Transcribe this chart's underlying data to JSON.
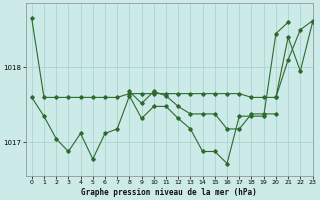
{
  "bg_color": "#cceae7",
  "grid_color": "#aad4d0",
  "line_color": "#2d6a2d",
  "xlabel": "Graphe pression niveau de la mer (hPa)",
  "xlim": [
    -0.5,
    23
  ],
  "ylim": [
    1016.55,
    1018.85
  ],
  "yticks": [
    1017,
    1018
  ],
  "xticks": [
    0,
    1,
    2,
    3,
    4,
    5,
    6,
    7,
    8,
    9,
    10,
    11,
    12,
    13,
    14,
    15,
    16,
    17,
    18,
    19,
    20,
    21,
    22,
    23
  ],
  "series": [
    [
      1018.65,
      1017.6,
      1017.6,
      1017.6,
      1017.6,
      1017.6,
      1017.6,
      1017.6,
      1017.65,
      1017.65,
      1017.65,
      1017.65,
      1017.65,
      1017.65,
      1017.65,
      1017.65,
      1017.65,
      1017.65,
      1017.6,
      1017.6,
      1017.6,
      1018.4,
      1017.95,
      1018.6
    ],
    [
      1017.6,
      1017.35,
      1017.05,
      1016.88,
      1017.12,
      1016.78,
      1017.12,
      1017.18,
      1017.62,
      1017.32,
      1017.48,
      1017.48,
      1017.32,
      1017.18,
      1016.88,
      1016.88,
      1016.72,
      1017.35,
      1017.35,
      1017.35,
      1018.45,
      1018.6,
      null,
      null
    ],
    [
      null,
      null,
      null,
      null,
      null,
      null,
      null,
      null,
      1017.68,
      1017.52,
      1017.68,
      1017.62,
      1017.48,
      1017.38,
      1017.38,
      1017.38,
      1017.18,
      1017.18,
      1017.38,
      1017.38,
      1017.38,
      null,
      null,
      null
    ],
    [
      null,
      null,
      null,
      null,
      null,
      null,
      null,
      null,
      null,
      null,
      null,
      null,
      null,
      null,
      null,
      null,
      null,
      null,
      null,
      null,
      1017.6,
      1018.1,
      1018.5,
      1018.62
    ]
  ]
}
